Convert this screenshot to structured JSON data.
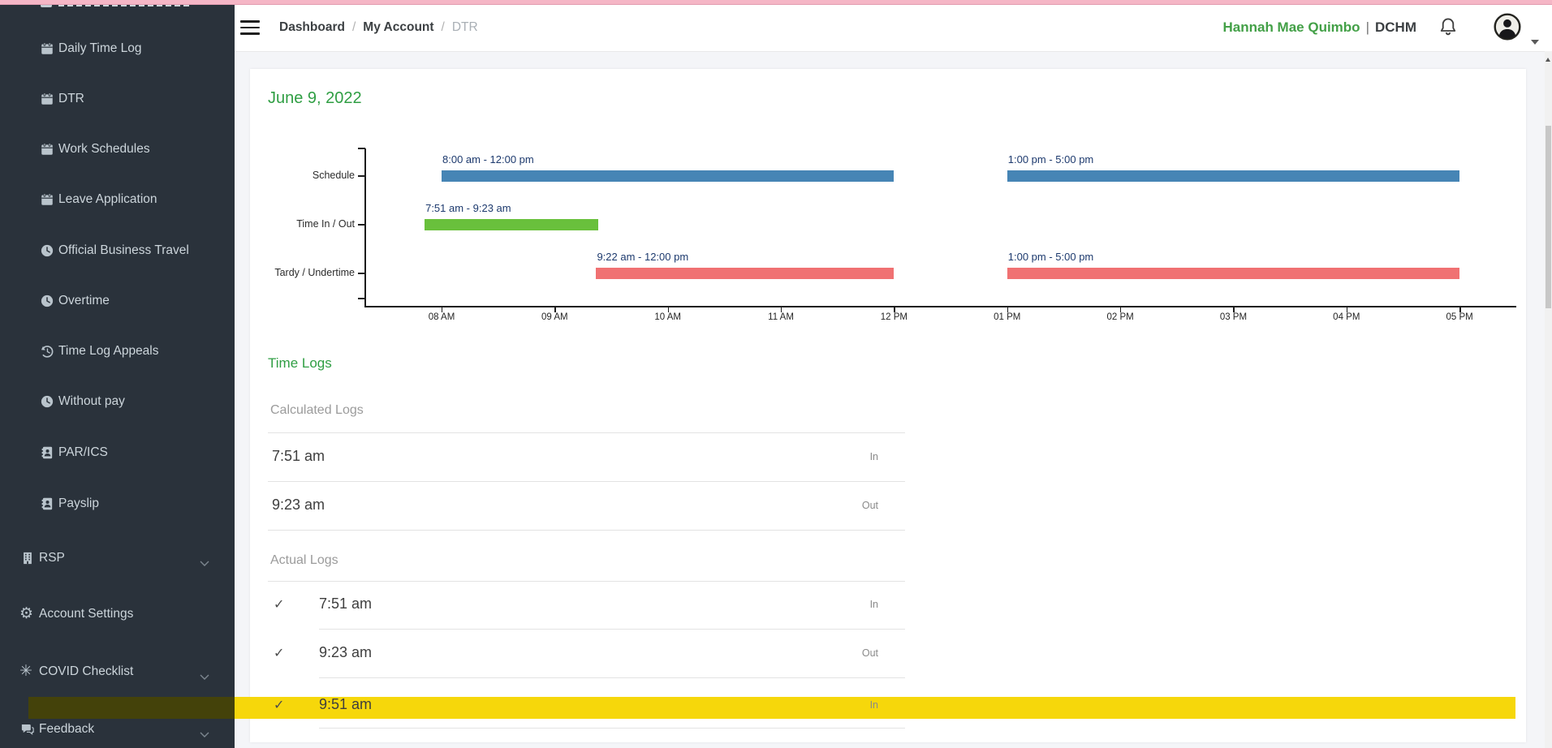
{
  "theme": {
    "pink_annotation": "#f5b6c6",
    "sidebar_bg": "#2a323b",
    "green_heading": "#2f9e43",
    "user_name_green": "#43a047",
    "schedule_bar_color": "#4685b5",
    "timeinout_bar_color": "#69c03c",
    "tardy_bar_color": "#f07172",
    "bar_label_color": "#1d3a6e",
    "highlight_yellow": "#f6d70b"
  },
  "topbar": {
    "hamburger_icon": "hamburger-icon",
    "breadcrumb": [
      {
        "label": "Dashboard"
      },
      {
        "label": "My Account"
      },
      {
        "label": "DTR"
      }
    ],
    "breadcrumb_separator": "/",
    "user": {
      "name": "Hannah Mae Quimbo",
      "separator": "|",
      "org": "DCHM"
    },
    "bell_icon": "bell-icon",
    "avatar_icon": "avatar-icon"
  },
  "sidebar": {
    "items": [
      {
        "label": "Daily Time Log",
        "icon": "calendar-icon",
        "level": "sub",
        "chevron": false
      },
      {
        "label": "DTR",
        "icon": "calendar-icon",
        "level": "sub",
        "chevron": false
      },
      {
        "label": "Work Schedules",
        "icon": "calendar-icon",
        "level": "sub",
        "chevron": false
      },
      {
        "label": "Leave Application",
        "icon": "calendar-icon",
        "level": "sub",
        "chevron": false
      },
      {
        "label": "Official Business Travel",
        "icon": "clock-icon",
        "level": "sub",
        "chevron": false
      },
      {
        "label": "Overtime",
        "icon": "clock-icon",
        "level": "sub",
        "chevron": false
      },
      {
        "label": "Time Log Appeals",
        "icon": "history-icon",
        "level": "sub",
        "chevron": false
      },
      {
        "label": "Without pay",
        "icon": "clock-icon",
        "level": "sub",
        "chevron": false
      },
      {
        "label": "PAR/ICS",
        "icon": "idcard-icon",
        "level": "sub",
        "chevron": false
      },
      {
        "label": "Payslip",
        "icon": "idcard-icon",
        "level": "sub",
        "chevron": false
      },
      {
        "label": "RSP",
        "icon": "building-icon",
        "level": "top",
        "chevron": true
      },
      {
        "label": "Account Settings",
        "icon": "gear-icon",
        "glyph": "⚙",
        "level": "top",
        "chevron": false
      },
      {
        "label": "COVID Checklist",
        "icon": "virus-icon",
        "glyph": "✳",
        "level": "top",
        "chevron": true
      },
      {
        "label": "Feedback",
        "icon": "chat-icon",
        "level": "top",
        "chevron": true
      }
    ]
  },
  "main": {
    "date_title": "June 9, 2022",
    "time_logs": {
      "title": "Time Logs",
      "calculated": {
        "title": "Calculated Logs",
        "rows": [
          {
            "time": "7:51 am",
            "direction": "In"
          },
          {
            "time": "9:23 am",
            "direction": "Out"
          }
        ]
      },
      "actual": {
        "title": "Actual Logs",
        "check_glyph": "✓",
        "rows": [
          {
            "time": "7:51 am",
            "direction": "In",
            "checked": true,
            "highlighted": false
          },
          {
            "time": "9:23 am",
            "direction": "Out",
            "checked": true,
            "highlighted": false
          },
          {
            "time": "9:51 am",
            "direction": "In",
            "checked": true,
            "highlighted": true
          }
        ]
      }
    }
  },
  "chart_data": {
    "type": "gantt",
    "rows": [
      "Schedule",
      "Time In / Out",
      "Tardy / Undertime"
    ],
    "x_ticks": [
      "08 AM",
      "09 AM",
      "10 AM",
      "11 AM",
      "12 PM",
      "01 PM",
      "02 PM",
      "03 PM",
      "04 PM",
      "05 PM"
    ],
    "x_range_hours": [
      8,
      17
    ],
    "grid": false,
    "bars": [
      {
        "row": "Schedule",
        "label": "8:00 am - 12:00 pm",
        "start": 8.0,
        "end": 12.0,
        "color": "#4685b5"
      },
      {
        "row": "Schedule",
        "label": "1:00 pm - 5:00 pm",
        "start": 13.0,
        "end": 17.0,
        "color": "#4685b5"
      },
      {
        "row": "Time In / Out",
        "label": "7:51 am - 9:23 am",
        "start": 7.85,
        "end": 9.3833,
        "color": "#69c03c"
      },
      {
        "row": "Tardy / Undertime",
        "label": "9:22 am - 12:00 pm",
        "start": 9.3667,
        "end": 12.0,
        "color": "#f07172"
      },
      {
        "row": "Tardy / Undertime",
        "label": "1:00 pm - 5:00 pm",
        "start": 13.0,
        "end": 17.0,
        "color": "#f07172"
      }
    ]
  }
}
